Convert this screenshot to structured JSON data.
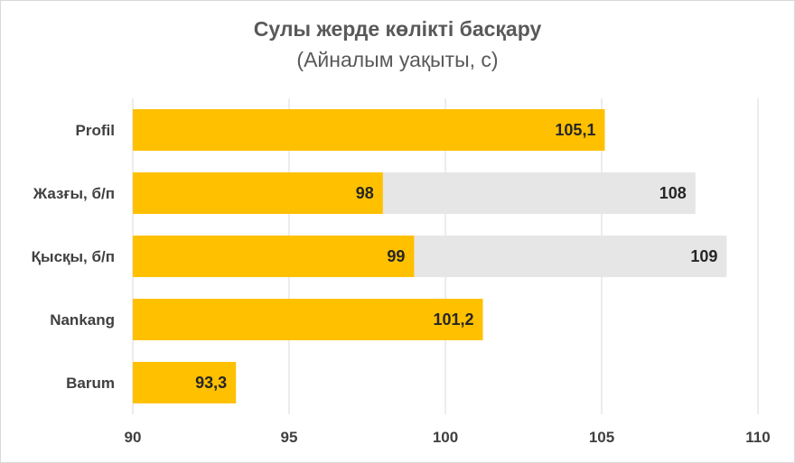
{
  "chart_data": {
    "type": "bar",
    "orientation": "horizontal",
    "title": "Сулы жерде көлікті басқару",
    "subtitle": "(Айналым уақыты, с)",
    "categories": [
      "Profil",
      "Жазғы, б/п",
      "Қысқы, б/п",
      "Nankang",
      "Barum"
    ],
    "series": [
      {
        "values": [
          105.1,
          98,
          99,
          101.2,
          93.3
        ],
        "labels": [
          "105,1",
          "98",
          "99",
          "101,2",
          "93,3"
        ],
        "color": "#ffc000"
      },
      {
        "values": [
          null,
          108,
          109,
          null,
          null
        ],
        "labels": [
          "",
          "108",
          "109",
          "",
          ""
        ],
        "color": "#e7e6e6"
      }
    ],
    "xlim": [
      90,
      110
    ],
    "xticks": [
      90,
      95,
      100,
      105,
      110
    ],
    "grid": true,
    "legend": "none"
  }
}
